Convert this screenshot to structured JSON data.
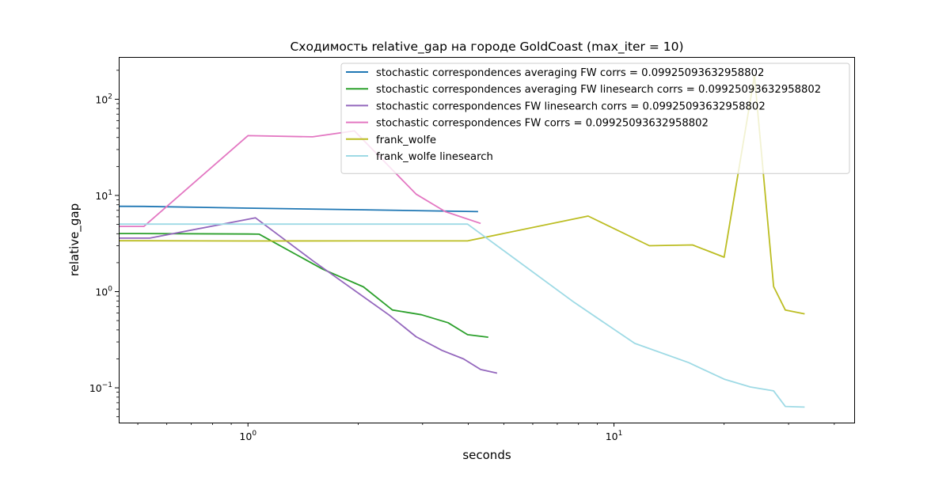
{
  "chart_data": {
    "type": "line",
    "title": "Сходимость relative_gap на городе GoldCoast  (max_iter = 10)",
    "xlabel": "seconds",
    "ylabel": "relative_gap",
    "xscale": "log",
    "yscale": "log",
    "xlim": [
      0.4435,
      45.34
    ],
    "ylim": [
      0.0435,
      275
    ],
    "x_ticks": [
      {
        "value": 1,
        "label": "10^0"
      },
      {
        "value": 10,
        "label": "10^1"
      }
    ],
    "y_ticks": [
      {
        "value": 0.1,
        "label": "10^-1"
      },
      {
        "value": 1,
        "label": "10^0"
      },
      {
        "value": 10,
        "label": "10^1"
      },
      {
        "value": 100,
        "label": "10^2"
      }
    ],
    "grid": false,
    "legend_position": "upper right",
    "series": [
      {
        "name": "stochastic correspondences averaging FW  corrs = 0.09925093632958802",
        "color": "#1f77b4",
        "x": [
          0.4435,
          0.5195,
          1.0,
          1.9989,
          4.2541
        ],
        "y": [
          7.71,
          7.7,
          7.38,
          7.11,
          6.79
        ]
      },
      {
        "name": "stochastic correspondences averaging FW linesearch corrs = 0.09925093632958802",
        "color": "#2ca02c",
        "x": [
          0.4435,
          0.5002,
          1.0,
          1.0732,
          1.6016,
          2.0682,
          2.4813,
          2.9772,
          3.5218,
          3.9809,
          4.5364
        ],
        "y": [
          4.02,
          4.02,
          3.97,
          3.96,
          1.71,
          1.12,
          0.644,
          0.575,
          0.475,
          0.357,
          0.336
        ]
      },
      {
        "name": "stochastic correspondences FW linesearch corrs = 0.09925093632958802",
        "color": "#9467bd",
        "x": [
          0.4435,
          0.5391,
          1.0475,
          1.5017,
          2.4325,
          2.8802,
          3.3917,
          3.8803,
          4.3229,
          4.7943
        ],
        "y": [
          3.6,
          3.6,
          5.86,
          2.1,
          0.57,
          0.34,
          0.245,
          0.2,
          0.155,
          0.142
        ]
      },
      {
        "name": "stochastic correspondences FW corrs = 0.09925093632958802",
        "color": "#e377c2",
        "x": [
          0.4435,
          0.5195,
          1.0,
          1.5017,
          1.9539,
          2.8802,
          3.4586,
          4.3229
        ],
        "y": [
          4.76,
          4.76,
          41.84,
          40.66,
          46.87,
          10.31,
          6.79,
          5.12
        ]
      },
      {
        "name": "frank_wolfe",
        "color": "#bcbd22",
        "x": [
          0.4435,
          0.5002,
          1.0,
          1.9989,
          3.9809,
          8.5,
          12.5,
          16.4,
          20.0,
          24.2,
          27.3,
          29.4,
          33.2
        ],
        "y": [
          3.38,
          3.38,
          3.36,
          3.37,
          3.37,
          6.1,
          3.0,
          3.06,
          2.28,
          176,
          1.13,
          0.643,
          0.587
        ]
      },
      {
        "name": "frank_wolfe linesearch",
        "color": "#9edae5",
        "x": [
          0.4435,
          0.5002,
          1.0,
          3.9809,
          7.8,
          11.4,
          16.0,
          20.0,
          23.6,
          27.3,
          29.4,
          33.2
        ],
        "y": [
          5.03,
          5.03,
          5.03,
          5.03,
          0.77,
          0.29,
          0.183,
          0.123,
          0.102,
          0.093,
          0.064,
          0.063
        ]
      }
    ]
  }
}
